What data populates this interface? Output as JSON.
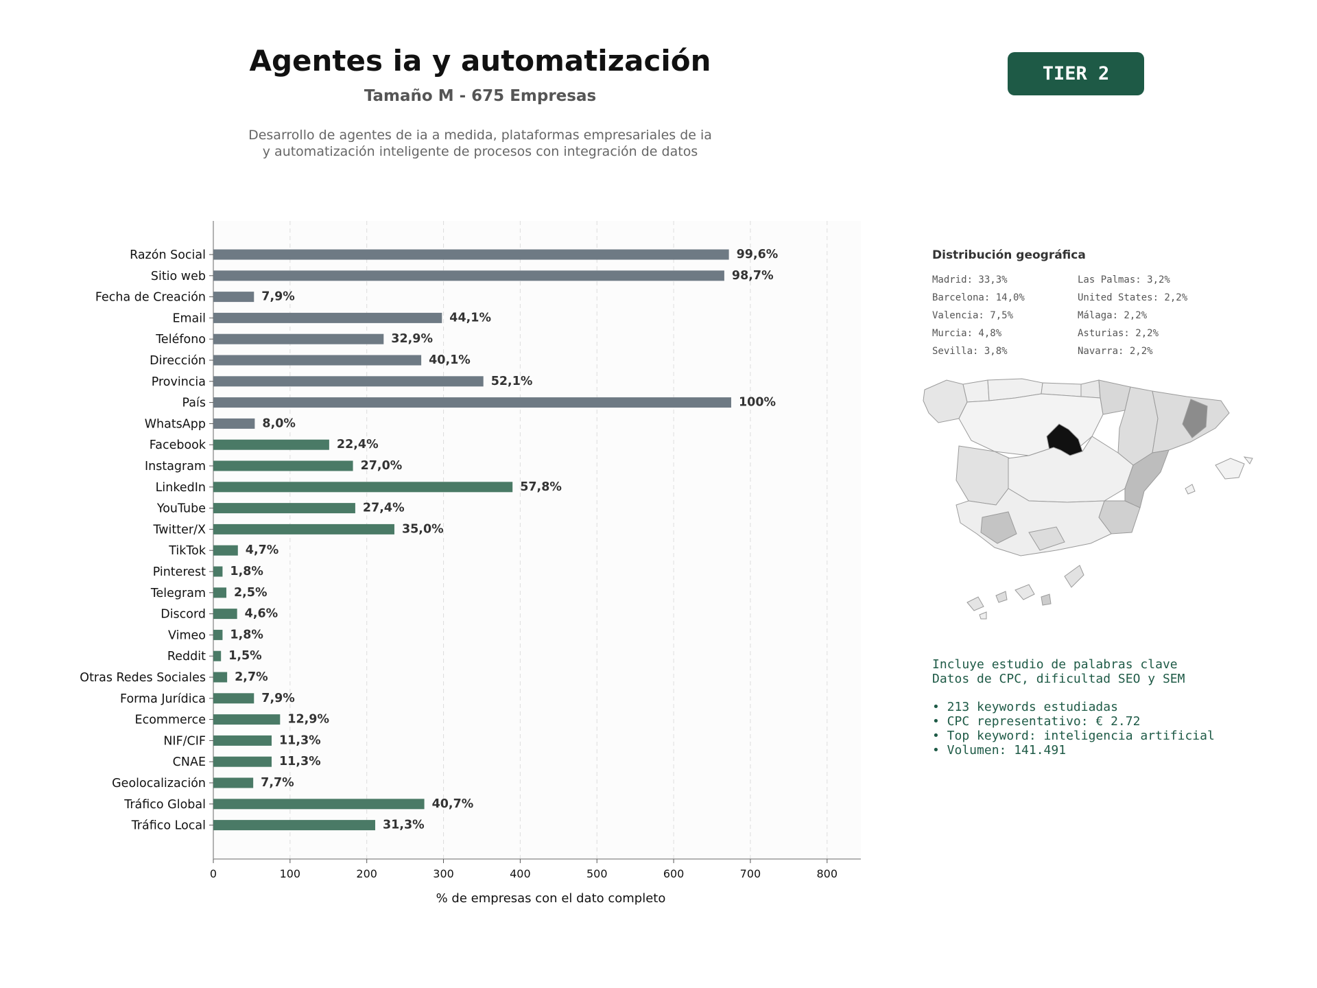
{
  "header": {
    "title": "Agentes ia y automatización",
    "subtitle": "Tamaño M - 675 Empresas",
    "description_lines": [
      "Desarrollo de agentes de ia a medida, plataformas empresariales de ia",
      "y automatización inteligente de procesos con integración de datos"
    ],
    "tier": "TIER 2"
  },
  "colors": {
    "bar_basic": "#6e7a84",
    "bar_digital": "#4a7a66",
    "badge": "#1e5a46",
    "text_accent": "#1e5a46"
  },
  "chart_data": {
    "type": "bar",
    "orientation": "horizontal",
    "categories": [
      "Razón Social",
      "Sitio web",
      "Fecha de Creación",
      "Email",
      "Teléfono",
      "Dirección",
      "Provincia",
      "País",
      "WhatsApp",
      "Facebook",
      "Instagram",
      "LinkedIn",
      "YouTube",
      "Twitter/X",
      "TikTok",
      "Pinterest",
      "Telegram",
      "Discord",
      "Vimeo",
      "Reddit",
      "Otras Redes Sociales",
      "Forma Jurídica",
      "Ecommerce",
      "NIF/CIF",
      "CNAE",
      "Geolocalización",
      "Tráfico Global",
      "Tráfico Local"
    ],
    "values": [
      672,
      666,
      53,
      298,
      222,
      271,
      352,
      675,
      54,
      151,
      182,
      390,
      185,
      236,
      32,
      12,
      17,
      31,
      12,
      10,
      18,
      53,
      87,
      76,
      76,
      52,
      275,
      211
    ],
    "labels": [
      "99,6%",
      "98,7%",
      "7,9%",
      "44,1%",
      "32,9%",
      "40,1%",
      "52,1%",
      "100%",
      "8,0%",
      "22,4%",
      "27,0%",
      "57,8%",
      "27,4%",
      "35,0%",
      "4,7%",
      "1,8%",
      "2,5%",
      "4,6%",
      "1,8%",
      "1,5%",
      "2,7%",
      "7,9%",
      "12,9%",
      "11,3%",
      "11,3%",
      "7,7%",
      "40,7%",
      "31,3%"
    ],
    "color_groups": [
      "basic",
      "basic",
      "basic",
      "basic",
      "basic",
      "basic",
      "basic",
      "basic",
      "basic",
      "digital",
      "digital",
      "digital",
      "digital",
      "digital",
      "digital",
      "digital",
      "digital",
      "digital",
      "digital",
      "digital",
      "digital",
      "digital",
      "digital",
      "digital",
      "digital",
      "digital",
      "digital",
      "digital"
    ],
    "xlabel": "% de empresas con el dato completo",
    "ylabel": "",
    "xlim": [
      0,
      844
    ],
    "xticks": [
      0,
      100,
      200,
      300,
      400,
      500,
      600,
      700,
      800
    ],
    "grid": true
  },
  "geo": {
    "title": "Distribución geográfica",
    "col1": [
      "Madrid: 33,3%",
      "Barcelona: 14,0%",
      "Valencia: 7,5%",
      "Murcia: 4,8%",
      "Sevilla: 3,8%"
    ],
    "col2": [
      "Las Palmas: 3,2%",
      "United States: 2,2%",
      "Málaga: 2,2%",
      "Asturias: 2,2%",
      "Navarra: 2,2%"
    ]
  },
  "keywords": {
    "line1": "Incluye estudio de palabras clave",
    "line2": "Datos de CPC, dificultad SEO y SEM",
    "bullets": [
      "• 213 keywords estudiadas",
      "• CPC representativo: € 2.72",
      "• Top keyword: inteligencia artificial",
      "• Volumen: 141.491"
    ]
  }
}
